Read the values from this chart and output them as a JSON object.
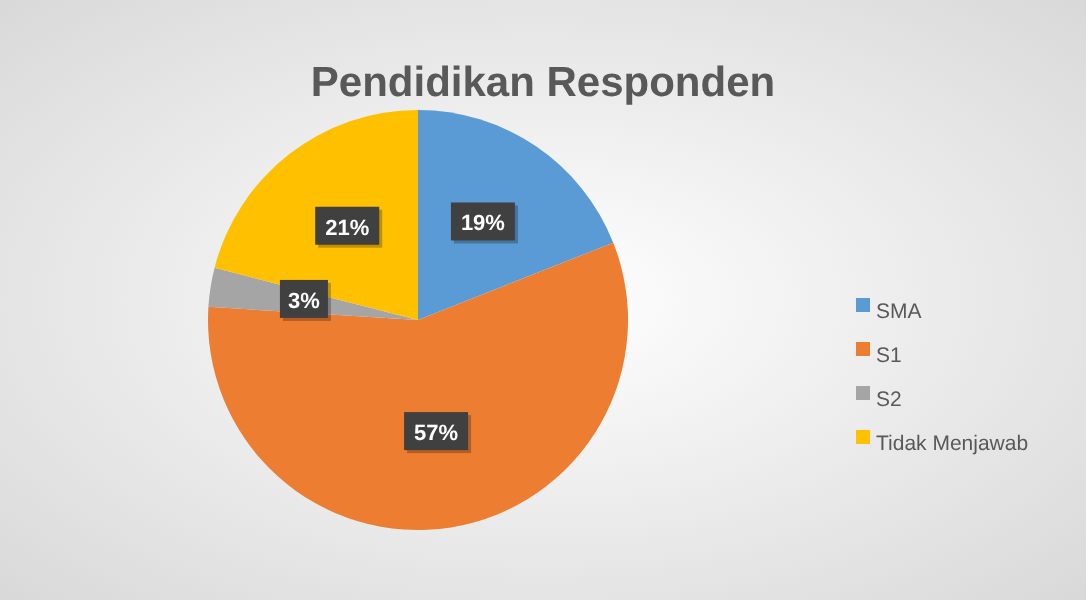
{
  "chart_data": {
    "type": "pie",
    "title": "Pendidikan Responden",
    "categories": [
      "SMA",
      "S1",
      "S2",
      "Tidak Menjawab"
    ],
    "values": [
      19,
      57,
      3,
      21
    ],
    "value_labels": [
      "19%",
      "57%",
      "3%",
      "21%"
    ],
    "colors": [
      "#5b9bd5",
      "#ed7d31",
      "#a5a5a5",
      "#ffc000"
    ],
    "legend": "right"
  }
}
